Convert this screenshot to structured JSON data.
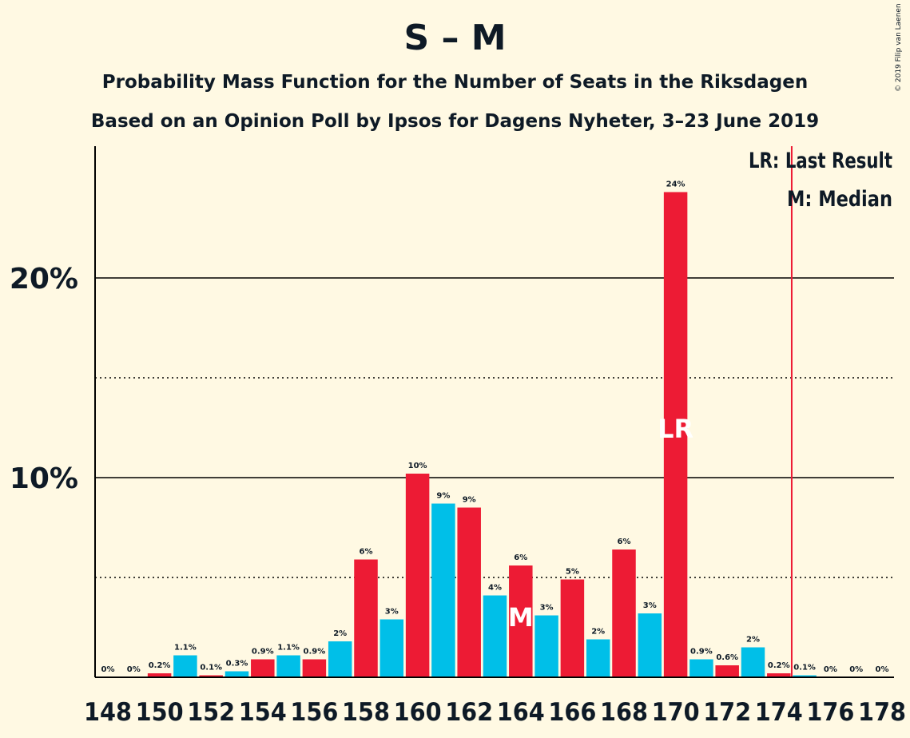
{
  "title": "S – M",
  "subtitle": "Probability Mass Function for the Number of Seats in the Riksdagen",
  "subtitle2": "Based on an Opinion Poll by Ipsos for Dagens Nyheter, 3–23 June 2019",
  "copyright": "© 2019 Filip van Laenen",
  "legend": {
    "lr": "LR: Last Result",
    "m": "M: Median"
  },
  "colors": {
    "background": "#FFF9E3",
    "red": "#ED1B34",
    "blue": "#00BFE8",
    "text": "#0E1A26"
  },
  "chart_data": {
    "type": "bar",
    "x": [
      148,
      149,
      150,
      151,
      152,
      153,
      154,
      155,
      156,
      157,
      158,
      159,
      160,
      161,
      162,
      163,
      164,
      165,
      166,
      167,
      168,
      169,
      170,
      171,
      172,
      173,
      174,
      175,
      176,
      177,
      178
    ],
    "values": [
      0,
      0,
      0.2,
      1.1,
      0.1,
      0.3,
      0.9,
      1.1,
      0.9,
      1.8,
      5.9,
      2.9,
      10.2,
      8.7,
      8.5,
      4.1,
      5.6,
      3.1,
      4.9,
      1.9,
      6.4,
      3.2,
      24.3,
      0.9,
      0.6,
      1.5,
      0.2,
      0.1,
      0,
      0,
      0
    ],
    "data_labels": [
      "0%",
      "0%",
      "0.2%",
      "1.1%",
      "0.1%",
      "0.3%",
      "0.9%",
      "1.1%",
      "0.9%",
      "2%",
      "6%",
      "3%",
      "10%",
      "9%",
      "9%",
      "4%",
      "6%",
      "3%",
      "5%",
      "2%",
      "6%",
      "3%",
      "24%",
      "0.9%",
      "0.6%",
      "2%",
      "0.2%",
      "0.1%",
      "0%",
      "0%",
      "0%"
    ],
    "x_tick_labels": [
      "148",
      "150",
      "152",
      "154",
      "156",
      "158",
      "160",
      "162",
      "164",
      "166",
      "168",
      "170",
      "172",
      "174",
      "176",
      "178"
    ],
    "y_tick_labels": [
      "10%",
      "20%"
    ],
    "ylim": [
      0,
      26.5
    ],
    "grid": {
      "solid": [
        10,
        20
      ],
      "dotted": [
        5,
        15
      ]
    },
    "median": {
      "x": 164,
      "label": "M"
    },
    "last_result": {
      "x": 170,
      "label": "LR",
      "line_x": 174.5
    }
  }
}
